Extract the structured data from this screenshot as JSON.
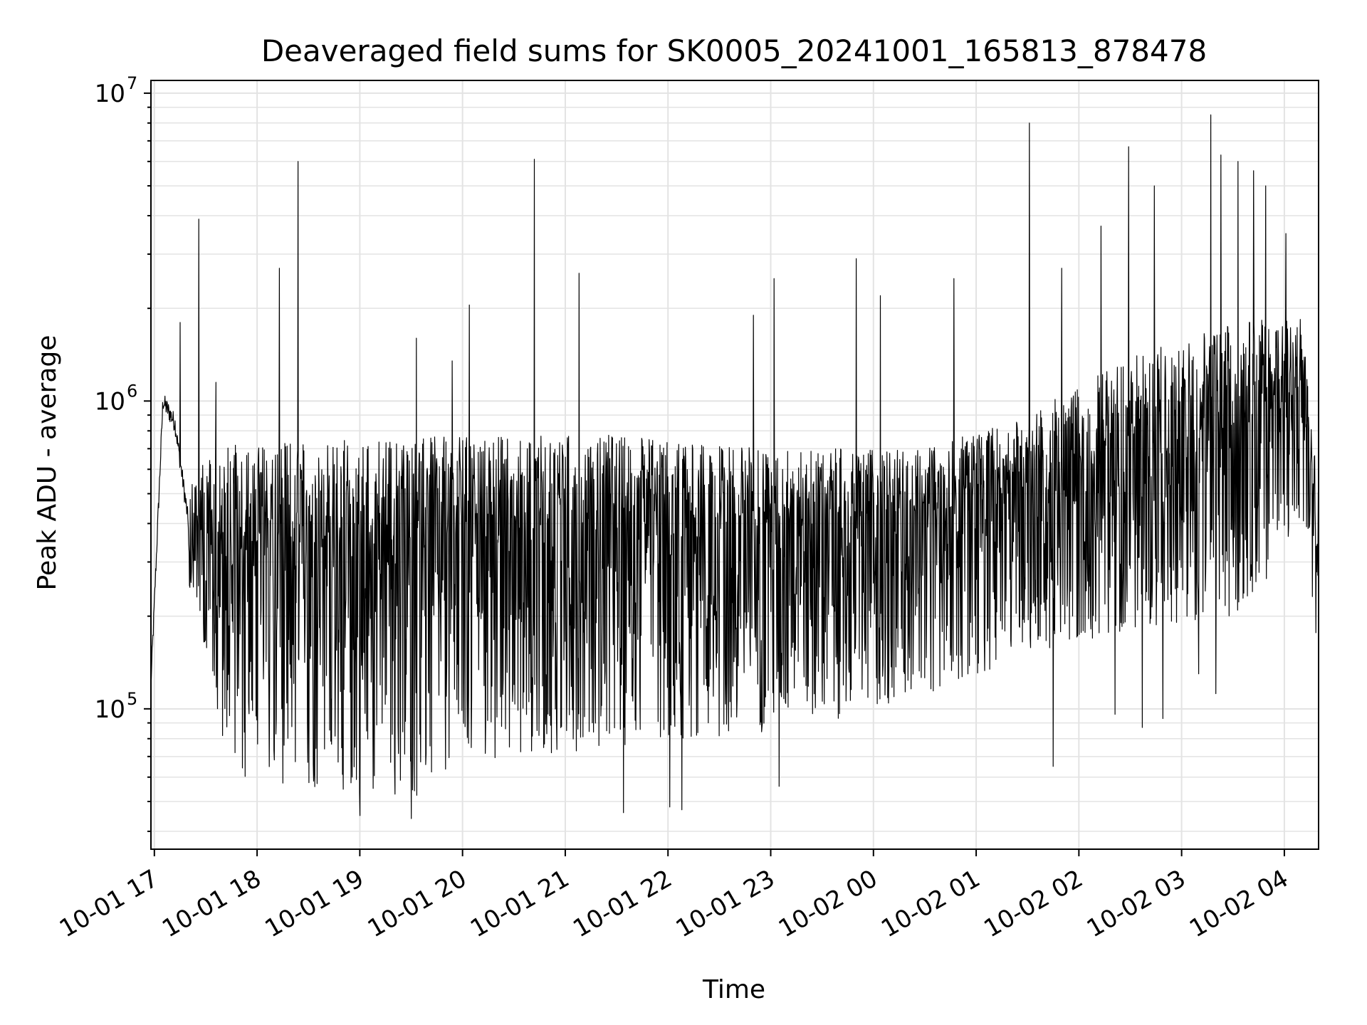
{
  "chart_data": {
    "type": "line",
    "title": "Deaveraged field sums for SK0005_20241001_165813_878478",
    "xlabel": "Time",
    "ylabel": "Peak ADU - average",
    "yscale": "log",
    "ylim": [
      35000,
      11000000
    ],
    "xlim": [
      "2024-10-01 16:58",
      "2024-10-02 04:20"
    ],
    "grid": true,
    "line_color": "#000000",
    "x_tick_labels": [
      "10-01 17",
      "10-01 18",
      "10-01 19",
      "10-01 20",
      "10-01 21",
      "10-01 22",
      "10-01 23",
      "10-02 00",
      "10-02 01",
      "10-02 02",
      "10-02 03",
      "10-02 04"
    ],
    "y_tick_labels": [
      {
        "value": 100000,
        "base": "10",
        "exp": "5"
      },
      {
        "value": 1000000,
        "base": "10",
        "exp": "6"
      },
      {
        "value": 10000000,
        "base": "10",
        "exp": "7"
      }
    ],
    "envelope": [
      {
        "t": "2024-10-01 16:58",
        "low": 120000,
        "mid": 120000,
        "high": 120000
      },
      {
        "t": "2024-10-01 17:05",
        "low": 900000,
        "mid": 1000000,
        "high": 1200000
      },
      {
        "t": "2024-10-01 17:12",
        "low": 700000,
        "mid": 850000,
        "high": 1000000
      },
      {
        "t": "2024-10-01 17:20",
        "low": 250000,
        "mid": 400000,
        "high": 600000
      },
      {
        "t": "2024-10-01 17:40",
        "low": 60000,
        "mid": 300000,
        "high": 720000
      },
      {
        "t": "2024-10-01 18:30",
        "low": 55000,
        "mid": 330000,
        "high": 740000
      },
      {
        "t": "2024-10-01 19:30",
        "low": 50000,
        "mid": 350000,
        "high": 760000
      },
      {
        "t": "2024-10-01 20:30",
        "low": 70000,
        "mid": 400000,
        "high": 780000
      },
      {
        "t": "2024-10-01 21:30",
        "low": 75000,
        "mid": 420000,
        "high": 780000
      },
      {
        "t": "2024-10-01 22:30",
        "low": 80000,
        "mid": 380000,
        "high": 720000
      },
      {
        "t": "2024-10-01 23:30",
        "low": 90000,
        "mid": 400000,
        "high": 700000
      },
      {
        "t": "2024-10-02 00:30",
        "low": 110000,
        "mid": 430000,
        "high": 700000
      },
      {
        "t": "2024-10-02 01:30",
        "low": 150000,
        "mid": 520000,
        "high": 900000
      },
      {
        "t": "2024-10-02 02:30",
        "low": 180000,
        "mid": 620000,
        "high": 1400000
      },
      {
        "t": "2024-10-02 03:30",
        "low": 200000,
        "mid": 750000,
        "high": 1800000
      },
      {
        "t": "2024-10-02 04:10",
        "low": 350000,
        "mid": 1300000,
        "high": 1900000
      },
      {
        "t": "2024-10-02 04:20",
        "low": 150000,
        "mid": 300000,
        "high": 500000
      }
    ],
    "spikes": [
      {
        "t": "2024-10-01 17:15",
        "value": 1800000
      },
      {
        "t": "2024-10-01 17:26",
        "value": 3900000
      },
      {
        "t": "2024-10-01 17:36",
        "value": 1150000
      },
      {
        "t": "2024-10-01 18:13",
        "value": 2700000
      },
      {
        "t": "2024-10-01 18:24",
        "value": 6000000
      },
      {
        "t": "2024-10-01 19:33",
        "value": 1600000
      },
      {
        "t": "2024-10-01 19:54",
        "value": 1350000
      },
      {
        "t": "2024-10-01 20:04",
        "value": 2050000
      },
      {
        "t": "2024-10-01 20:42",
        "value": 6100000
      },
      {
        "t": "2024-10-01 21:08",
        "value": 2600000
      },
      {
        "t": "2024-10-01 22:50",
        "value": 1900000
      },
      {
        "t": "2024-10-01 23:02",
        "value": 2500000
      },
      {
        "t": "2024-10-01 23:50",
        "value": 2900000
      },
      {
        "t": "2024-10-02 00:04",
        "value": 2200000
      },
      {
        "t": "2024-10-02 00:47",
        "value": 2500000
      },
      {
        "t": "2024-10-02 01:31",
        "value": 8000000
      },
      {
        "t": "2024-10-02 01:50",
        "value": 2700000
      },
      {
        "t": "2024-10-02 02:13",
        "value": 3700000
      },
      {
        "t": "2024-10-02 02:29",
        "value": 6700000
      },
      {
        "t": "2024-10-02 02:44",
        "value": 5000000
      },
      {
        "t": "2024-10-02 03:17",
        "value": 8500000
      },
      {
        "t": "2024-10-02 03:23",
        "value": 6300000
      },
      {
        "t": "2024-10-02 03:33",
        "value": 6000000
      },
      {
        "t": "2024-10-02 03:42",
        "value": 5600000
      },
      {
        "t": "2024-10-02 03:49",
        "value": 5000000
      },
      {
        "t": "2024-10-02 04:01",
        "value": 3500000
      }
    ],
    "dips": [
      {
        "t": "2024-10-01 19:00",
        "value": 45000
      },
      {
        "t": "2024-10-01 19:30",
        "value": 44000
      },
      {
        "t": "2024-10-01 21:34",
        "value": 46000
      },
      {
        "t": "2024-10-01 22:01",
        "value": 48000
      },
      {
        "t": "2024-10-01 22:08",
        "value": 47000
      },
      {
        "t": "2024-10-01 23:05",
        "value": 56000
      },
      {
        "t": "2024-10-02 01:45",
        "value": 65000
      },
      {
        "t": "2024-10-02 02:21",
        "value": 96000
      },
      {
        "t": "2024-10-02 02:37",
        "value": 87000
      },
      {
        "t": "2024-10-02 02:49",
        "value": 93000
      },
      {
        "t": "2024-10-02 03:10",
        "value": 130000
      },
      {
        "t": "2024-10-02 03:20",
        "value": 112000
      }
    ]
  }
}
